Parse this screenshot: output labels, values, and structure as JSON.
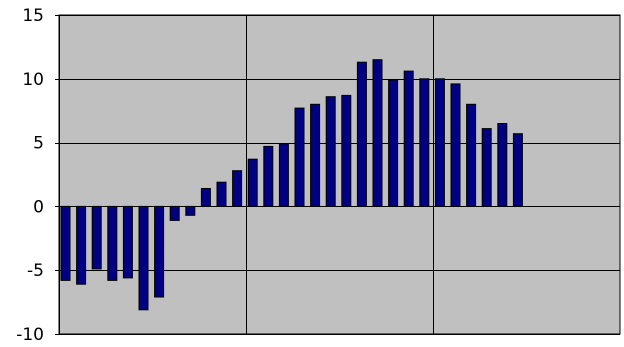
{
  "chart_data": {
    "type": "bar",
    "title": "",
    "xlabel": "",
    "ylabel": "",
    "ylim": [
      -10,
      15
    ],
    "yticks": [
      -10,
      -5,
      0,
      5,
      10,
      15
    ],
    "grid": true,
    "legend": "none",
    "values": [
      -5.8,
      -6.1,
      -4.9,
      -5.8,
      -5.6,
      -8.1,
      -7.1,
      -1.1,
      -0.7,
      1.4,
      1.9,
      2.8,
      3.7,
      4.7,
      4.9,
      7.7,
      8.0,
      8.6,
      8.7,
      11.3,
      11.5,
      9.9,
      10.6,
      10.0,
      10.0,
      9.6,
      8.0,
      6.1,
      6.5,
      5.7
    ],
    "colors": {
      "plot_background": "#c0c0c0",
      "bar_fill": "#000080",
      "bar_stroke": "#000000",
      "gridline": "#000000"
    }
  }
}
